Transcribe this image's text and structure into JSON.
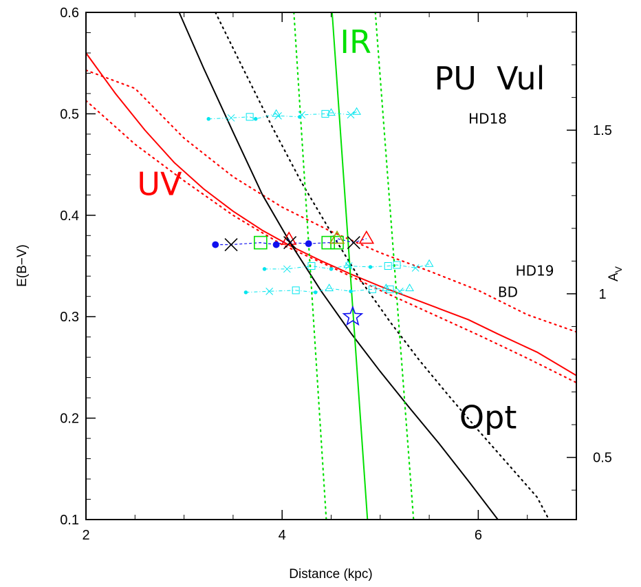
{
  "chart_data": {
    "type": "line",
    "title": "",
    "xlabel": "Distance (kpc)",
    "ylabel": "E(B−V)",
    "ylabel_right": "A_V",
    "xlim": [
      2,
      7
    ],
    "ylim": [
      0.1,
      0.6
    ],
    "x_ticks": [
      2,
      4,
      6
    ],
    "y_ticks": [
      0.1,
      0.2,
      0.3,
      0.4,
      0.5,
      0.6
    ],
    "y_right_ticks": [
      0.5,
      1,
      1.5
    ],
    "y_right_tick_labels": [
      "0.5",
      "1",
      "1.5"
    ],
    "y_right_scale": 3.1,
    "grid": false,
    "object_label": "PU  Vul",
    "colors": {
      "uv": "#ff0000",
      "ir": "#00e000",
      "opt": "#000000",
      "comp": "#00e5ee",
      "point": "#1010ee"
    },
    "curves": [
      {
        "id": "uv",
        "label": "UV",
        "color": "#ff0000",
        "style": "solid",
        "points": [
          [
            2.0,
            0.56
          ],
          [
            2.3,
            0.52
          ],
          [
            2.6,
            0.484
          ],
          [
            2.9,
            0.452
          ],
          [
            3.2,
            0.426
          ],
          [
            3.5,
            0.404
          ],
          [
            3.8,
            0.385
          ],
          [
            4.1,
            0.369
          ],
          [
            4.4,
            0.355
          ],
          [
            4.7,
            0.342
          ],
          [
            5.0,
            0.33
          ],
          [
            5.3,
            0.319
          ],
          [
            5.6,
            0.308
          ],
          [
            5.9,
            0.297
          ],
          [
            6.2,
            0.283
          ],
          [
            6.6,
            0.265
          ],
          [
            7.0,
            0.242
          ]
        ]
      },
      {
        "id": "uv-upper",
        "color": "#ff0000",
        "style": "dotted",
        "points": [
          [
            2.0,
            0.543
          ],
          [
            2.5,
            0.525
          ],
          [
            3.0,
            0.476
          ],
          [
            3.5,
            0.438
          ],
          [
            4.0,
            0.408
          ],
          [
            4.5,
            0.384
          ],
          [
            5.0,
            0.363
          ],
          [
            5.5,
            0.345
          ],
          [
            6.0,
            0.326
          ],
          [
            6.5,
            0.302
          ],
          [
            7.0,
            0.285
          ]
        ]
      },
      {
        "id": "uv-lower",
        "color": "#ff0000",
        "style": "dotted",
        "points": [
          [
            2.0,
            0.513
          ],
          [
            2.5,
            0.47
          ],
          [
            3.0,
            0.434
          ],
          [
            3.5,
            0.4
          ],
          [
            4.0,
            0.371
          ],
          [
            4.5,
            0.349
          ],
          [
            5.0,
            0.326
          ],
          [
            5.5,
            0.304
          ],
          [
            6.0,
            0.282
          ],
          [
            6.5,
            0.259
          ],
          [
            7.0,
            0.235
          ]
        ]
      },
      {
        "id": "opt",
        "label": "Opt",
        "color": "#000000",
        "style": "solid",
        "points": [
          [
            2.95,
            0.6
          ],
          [
            3.2,
            0.545
          ],
          [
            3.5,
            0.482
          ],
          [
            3.8,
            0.42
          ],
          [
            4.1,
            0.37
          ],
          [
            4.4,
            0.325
          ],
          [
            4.7,
            0.284
          ],
          [
            5.0,
            0.246
          ],
          [
            5.3,
            0.21
          ],
          [
            5.6,
            0.175
          ],
          [
            5.9,
            0.138
          ],
          [
            6.2,
            0.1
          ]
        ]
      },
      {
        "id": "opt-dotted",
        "color": "#000000",
        "style": "dotted",
        "points": [
          [
            3.32,
            0.6
          ],
          [
            3.6,
            0.545
          ],
          [
            3.9,
            0.487
          ],
          [
            4.2,
            0.432
          ],
          [
            4.5,
            0.383
          ],
          [
            4.8,
            0.336
          ],
          [
            5.1,
            0.295
          ],
          [
            5.4,
            0.257
          ],
          [
            5.7,
            0.222
          ],
          [
            6.0,
            0.188
          ],
          [
            6.3,
            0.155
          ],
          [
            6.6,
            0.122
          ],
          [
            6.72,
            0.1
          ]
        ]
      },
      {
        "id": "ir",
        "label": "IR",
        "color": "#00e000",
        "style": "solid",
        "points": [
          [
            4.51,
            0.6
          ],
          [
            4.87,
            0.1
          ]
        ]
      },
      {
        "id": "ir-left",
        "color": "#00e000",
        "style": "dotted",
        "points": [
          [
            4.12,
            0.6
          ],
          [
            4.45,
            0.1
          ]
        ]
      },
      {
        "id": "ir-right",
        "color": "#00e000",
        "style": "dotted",
        "points": [
          [
            4.95,
            0.6
          ],
          [
            5.34,
            0.1
          ]
        ]
      }
    ],
    "curve_labels": [
      {
        "text": "UV",
        "x": 2.75,
        "y": 0.42,
        "color": "#ff0000"
      },
      {
        "text": "IR",
        "x": 4.75,
        "y": 0.56,
        "color": "#00e000"
      },
      {
        "text": "Opt",
        "x": 6.1,
        "y": 0.19,
        "color": "#000000"
      }
    ],
    "comparison_stars": [
      {
        "name": "HD18",
        "label_x": 5.9,
        "y": 0.496,
        "markers": [
          {
            "m": "dot",
            "x": 3.25,
            "y": 0.495
          },
          {
            "m": "cross",
            "x": 3.48,
            "y": 0.496
          },
          {
            "m": "square",
            "x": 3.67,
            "y": 0.497
          },
          {
            "m": "dot",
            "x": 3.73,
            "y": 0.495
          },
          {
            "m": "triangle",
            "x": 3.94,
            "y": 0.5
          },
          {
            "m": "cross",
            "x": 3.96,
            "y": 0.498
          },
          {
            "m": "dot",
            "x": 4.18,
            "y": 0.497
          },
          {
            "m": "cross",
            "x": 4.2,
            "y": 0.499
          },
          {
            "m": "square",
            "x": 4.44,
            "y": 0.5
          },
          {
            "m": "triangle",
            "x": 4.5,
            "y": 0.501
          },
          {
            "m": "cross",
            "x": 4.7,
            "y": 0.499
          },
          {
            "m": "triangle",
            "x": 4.76,
            "y": 0.502
          }
        ]
      },
      {
        "name": "HD19",
        "label_x": 6.38,
        "y": 0.346,
        "markers": [
          {
            "m": "dot",
            "x": 3.82,
            "y": 0.347
          },
          {
            "m": "cross",
            "x": 4.05,
            "y": 0.347
          },
          {
            "m": "square",
            "x": 4.3,
            "y": 0.35
          },
          {
            "m": "dot",
            "x": 4.5,
            "y": 0.347
          },
          {
            "m": "triangle",
            "x": 4.67,
            "y": 0.351
          },
          {
            "m": "cross",
            "x": 4.68,
            "y": 0.35
          },
          {
            "m": "dot",
            "x": 4.9,
            "y": 0.349
          },
          {
            "m": "square",
            "x": 5.08,
            "y": 0.35
          },
          {
            "m": "square",
            "x": 5.17,
            "y": 0.351
          },
          {
            "m": "cross",
            "x": 5.36,
            "y": 0.348
          },
          {
            "m": "triangle",
            "x": 5.5,
            "y": 0.352
          }
        ]
      },
      {
        "name": "BD",
        "label_x": 6.2,
        "y": 0.325,
        "markers": [
          {
            "m": "dot",
            "x": 3.63,
            "y": 0.324
          },
          {
            "m": "cross",
            "x": 3.87,
            "y": 0.325
          },
          {
            "m": "square",
            "x": 4.14,
            "y": 0.326
          },
          {
            "m": "dot",
            "x": 4.34,
            "y": 0.324
          },
          {
            "m": "triangle",
            "x": 4.48,
            "y": 0.328
          },
          {
            "m": "dot",
            "x": 4.7,
            "y": 0.325
          },
          {
            "m": "square",
            "x": 4.92,
            "y": 0.327
          },
          {
            "m": "triangle",
            "x": 5.06,
            "y": 0.328
          },
          {
            "m": "square",
            "x": 5.1,
            "y": 0.327
          },
          {
            "m": "cross",
            "x": 5.2,
            "y": 0.325
          },
          {
            "m": "triangle",
            "x": 5.3,
            "y": 0.328
          }
        ]
      }
    ],
    "pu_vul_markers": [
      {
        "m": "dot",
        "x": 3.32,
        "y": 0.371,
        "color": "#1010ee"
      },
      {
        "m": "cross",
        "x": 3.48,
        "y": 0.371,
        "color": "#000000"
      },
      {
        "m": "square",
        "x": 3.78,
        "y": 0.373,
        "color": "#00e000"
      },
      {
        "m": "dot",
        "x": 3.94,
        "y": 0.371,
        "color": "#1010ee"
      },
      {
        "m": "triangle",
        "x": 4.07,
        "y": 0.376,
        "color": "#ff0000"
      },
      {
        "m": "cross",
        "x": 4.08,
        "y": 0.373,
        "color": "#000000"
      },
      {
        "m": "dot",
        "x": 4.27,
        "y": 0.372,
        "color": "#1010ee"
      },
      {
        "m": "square",
        "x": 4.47,
        "y": 0.373,
        "color": "#00e000"
      },
      {
        "m": "square",
        "x": 4.56,
        "y": 0.373,
        "color": "#00e000"
      },
      {
        "m": "triangle",
        "x": 4.56,
        "y": 0.377,
        "color": "#a0a000"
      },
      {
        "m": "cross",
        "x": 4.73,
        "y": 0.373,
        "color": "#000000"
      },
      {
        "m": "triangle",
        "x": 4.86,
        "y": 0.377,
        "color": "#ff0000"
      }
    ],
    "best_estimate": {
      "m": "star",
      "x": 4.72,
      "y": 0.3,
      "color": "#1010ee"
    }
  }
}
